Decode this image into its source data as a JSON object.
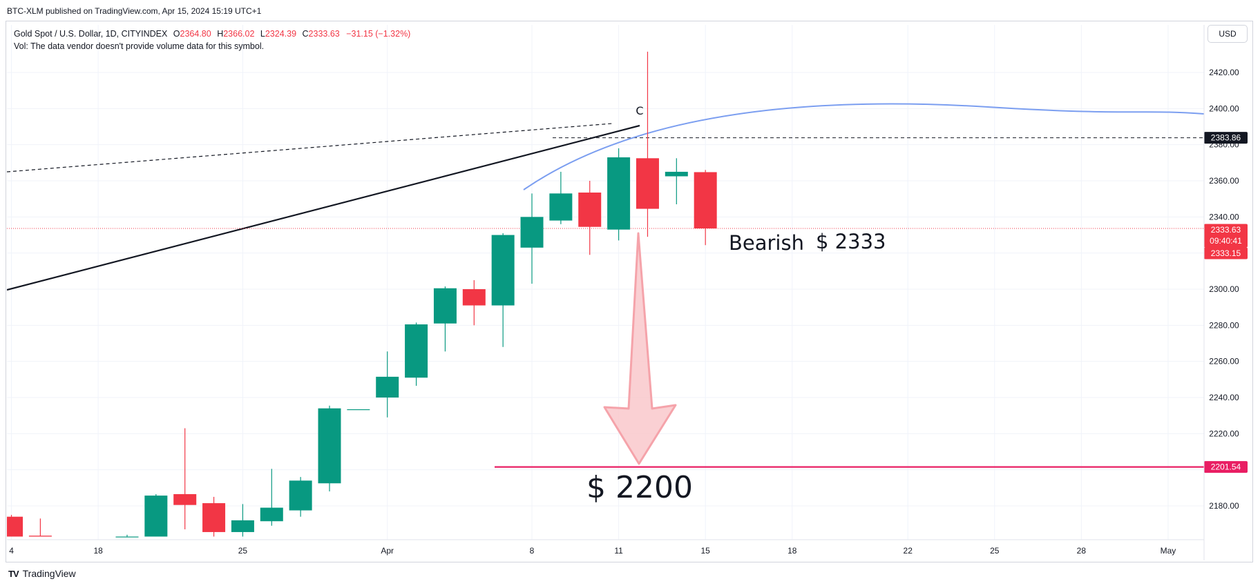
{
  "header": {
    "published": "BTC-XLM published on TradingView.com, Apr 15, 2024 15:19 UTC+1"
  },
  "legend": {
    "symbol": "Gold Spot / U.S. Dollar, 1D, CITYINDEX",
    "open_key": "O",
    "open": "2364.80",
    "high_key": "H",
    "high": "2366.02",
    "low_key": "L",
    "low": "2324.39",
    "close_key": "C",
    "close": "2333.63",
    "change": "−31.15 (−1.32%)",
    "volume_note": "Vol: The data vendor doesn't provide volume data for this symbol."
  },
  "currency": "USD",
  "footer": {
    "brand": "TradingView",
    "logo": "TV"
  },
  "colors": {
    "up": "#089981",
    "down": "#f23645",
    "curve": "#7b9ef0",
    "support": "#e91e63",
    "arrow_fill": "#f9c4c8",
    "arrow_stroke": "#f5a3aa"
  },
  "chart_data": {
    "type": "candlestick",
    "title": "Gold Spot / U.S. Dollar",
    "ylim": [
      2163,
      2432
    ],
    "y_ticks": [
      2180,
      2200,
      2220,
      2240,
      2260,
      2280,
      2300,
      2320,
      2340,
      2360,
      2380,
      2400,
      2420
    ],
    "x_ticks": [
      {
        "label": "4",
        "slot": -1
      },
      {
        "label": "18",
        "slot": 2
      },
      {
        "label": "25",
        "slot": 7
      },
      {
        "label": "Apr",
        "slot": 12
      },
      {
        "label": "8",
        "slot": 17
      },
      {
        "label": "11",
        "slot": 20
      },
      {
        "label": "15",
        "slot": 23
      },
      {
        "label": "18",
        "slot": 26
      },
      {
        "label": "22",
        "slot": 30
      },
      {
        "label": "25",
        "slot": 33
      },
      {
        "label": "28",
        "slot": 36
      },
      {
        "label": "May",
        "slot": 39
      }
    ],
    "candles": [
      {
        "slot": -1,
        "o": 2174.0,
        "h": 2175.0,
        "l": 2163.0,
        "c": 2163.0
      },
      {
        "slot": 0,
        "o": 2163.5,
        "h": 2173.0,
        "l": 2163.0,
        "c": 2163.0
      },
      {
        "slot": 3,
        "o": 2163.0,
        "h": 2164.0,
        "l": 2163.0,
        "c": 2163.0
      },
      {
        "slot": 4,
        "o": 2163.0,
        "h": 2186.5,
        "l": 2163.0,
        "c": 2185.7
      },
      {
        "slot": 5,
        "o": 2186.5,
        "h": 2223.0,
        "l": 2167.0,
        "c": 2180.5
      },
      {
        "slot": 6,
        "o": 2181.5,
        "h": 2185.0,
        "l": 2163.0,
        "c": 2165.5
      },
      {
        "slot": 7,
        "o": 2165.5,
        "h": 2181.0,
        "l": 2163.0,
        "c": 2172.0
      },
      {
        "slot": 8,
        "o": 2171.5,
        "h": 2200.5,
        "l": 2169.0,
        "c": 2179.0
      },
      {
        "slot": 9,
        "o": 2177.5,
        "h": 2196.0,
        "l": 2174.0,
        "c": 2194.0
      },
      {
        "slot": 10,
        "o": 2192.5,
        "h": 2235.5,
        "l": 2188.0,
        "c": 2234.0
      },
      {
        "slot": 11,
        "o": 2233.5,
        "h": 2233.5,
        "l": 2233.5,
        "c": 2233.5
      },
      {
        "slot": 12,
        "o": 2240.0,
        "h": 2265.5,
        "l": 2229.0,
        "c": 2251.5
      },
      {
        "slot": 13,
        "o": 2251.0,
        "h": 2281.5,
        "l": 2246.5,
        "c": 2280.5
      },
      {
        "slot": 14,
        "o": 2281.0,
        "h": 2301.5,
        "l": 2265.5,
        "c": 2300.5
      },
      {
        "slot": 15,
        "o": 2300.0,
        "h": 2305.0,
        "l": 2280.0,
        "c": 2291.0
      },
      {
        "slot": 16,
        "o": 2291.0,
        "h": 2331.0,
        "l": 2268.0,
        "c": 2330.0
      },
      {
        "slot": 17,
        "o": 2323.0,
        "h": 2353.0,
        "l": 2303.0,
        "c": 2340.0
      },
      {
        "slot": 18,
        "o": 2338.0,
        "h": 2365.0,
        "l": 2336.0,
        "c": 2353.0
      },
      {
        "slot": 19,
        "o": 2353.5,
        "h": 2360.0,
        "l": 2319.0,
        "c": 2334.5
      },
      {
        "slot": 20,
        "o": 2333.0,
        "h": 2378.0,
        "l": 2327.0,
        "c": 2373.0
      },
      {
        "slot": 21,
        "o": 2372.5,
        "h": 2431.5,
        "l": 2329.0,
        "c": 2344.5
      },
      {
        "slot": 22,
        "o": 2362.5,
        "h": 2372.5,
        "l": 2347.0,
        "c": 2365.0
      },
      {
        "slot": 23,
        "o": 2364.8,
        "h": 2366.02,
        "l": 2324.39,
        "c": 2333.63
      }
    ],
    "price_tags": [
      {
        "value": 2383.86,
        "label": "2383.86",
        "style": "dark"
      },
      {
        "value": 2333.63,
        "label": "2333.63",
        "countdown": "09:40:41",
        "style": "red"
      },
      {
        "value": 2333.15,
        "label": "2333.15",
        "style": "red-solo"
      },
      {
        "value": 2201.54,
        "label": "2201.54",
        "style": "pink"
      }
    ],
    "annotations": {
      "bearish": "Bearish",
      "target_current": "$ 2333",
      "target_down": "$ 2200",
      "wave_label": "C"
    }
  }
}
